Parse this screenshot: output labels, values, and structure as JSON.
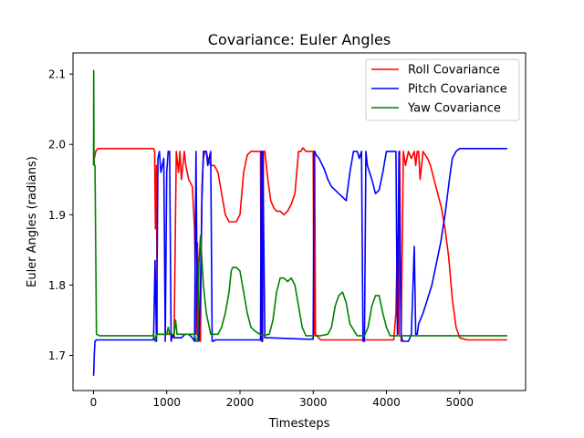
{
  "chart_data": {
    "type": "line",
    "title": "Covariance: Euler Angles",
    "xlabel": "Timesteps",
    "ylabel": "Euler Angles (radians)",
    "xlim": [
      -280,
      5900
    ],
    "ylim": [
      1.65,
      2.13
    ],
    "xticks": [
      0,
      1000,
      2000,
      3000,
      4000,
      5000
    ],
    "xtick_labels": [
      "0",
      "1000",
      "2000",
      "3000",
      "4000",
      "5000"
    ],
    "yticks": [
      1.7,
      1.8,
      1.9,
      2.0,
      2.1
    ],
    "ytick_labels": [
      "1.7",
      "1.8",
      "1.9",
      "2.0",
      "2.1"
    ],
    "grid": false,
    "legend_position": "top-right",
    "series": [
      {
        "name": "Roll Covariance",
        "color": "#ff0000",
        "x": [
          0,
          10,
          30,
          60,
          820,
          835,
          845,
          860,
          870,
          880,
          900,
          940,
          980,
          1000,
          1020,
          1060,
          1100,
          1130,
          1160,
          1180,
          1200,
          1220,
          1240,
          1260,
          1300,
          1350,
          1380,
          1400,
          1420,
          1440,
          1460,
          1480,
          1500,
          1520,
          1540,
          1560,
          1600,
          1650,
          1700,
          1750,
          1800,
          1850,
          1900,
          1950,
          2000,
          2050,
          2100,
          2150,
          2200,
          2250,
          2280,
          2290,
          2300,
          2310,
          2320,
          2340,
          2380,
          2420,
          2460,
          2500,
          2550,
          2600,
          2650,
          2700,
          2750,
          2800,
          2830,
          2860,
          2900,
          2950,
          3000,
          3010,
          3020,
          3030,
          3100,
          3500,
          3700,
          4100,
          4130,
          4150,
          4170,
          4180,
          4200,
          4230,
          4260,
          4300,
          4340,
          4380,
          4400,
          4420,
          4440,
          4460,
          4500,
          4560,
          4600,
          4650,
          4700,
          4750,
          4800,
          4850,
          4900,
          4950,
          5000,
          5100,
          5650
        ],
        "values": [
          1.975,
          1.98,
          1.99,
          1.994,
          1.994,
          1.99,
          1.88,
          1.97,
          1.73,
          1.73,
          1.73,
          1.73,
          1.73,
          1.73,
          1.73,
          1.73,
          1.725,
          1.99,
          1.96,
          1.99,
          1.95,
          1.97,
          1.99,
          1.97,
          1.95,
          1.94,
          1.88,
          1.73,
          1.86,
          1.73,
          1.72,
          1.94,
          1.98,
          1.99,
          1.99,
          1.98,
          1.97,
          1.97,
          1.96,
          1.93,
          1.9,
          1.89,
          1.89,
          1.89,
          1.9,
          1.96,
          1.985,
          1.99,
          1.99,
          1.99,
          1.99,
          1.72,
          1.99,
          1.72,
          1.99,
          1.99,
          1.95,
          1.92,
          1.91,
          1.905,
          1.905,
          1.9,
          1.905,
          1.915,
          1.93,
          1.99,
          1.99,
          1.995,
          1.99,
          1.99,
          1.99,
          1.73,
          1.99,
          1.73,
          1.722,
          1.722,
          1.722,
          1.722,
          1.76,
          1.87,
          1.73,
          1.99,
          1.72,
          1.99,
          1.97,
          1.99,
          1.98,
          1.99,
          1.97,
          1.99,
          1.99,
          1.95,
          1.99,
          1.98,
          1.97,
          1.95,
          1.93,
          1.91,
          1.88,
          1.84,
          1.78,
          1.74,
          1.725,
          1.722,
          1.722
        ]
      },
      {
        "name": "Pitch Covariance",
        "color": "#0000ff",
        "x": [
          0,
          5,
          10,
          20,
          40,
          80,
          820,
          840,
          860,
          880,
          900,
          920,
          940,
          960,
          980,
          1000,
          1020,
          1040,
          1060,
          1080,
          1100,
          1150,
          1200,
          1250,
          1300,
          1350,
          1380,
          1400,
          1420,
          1440,
          1460,
          1480,
          1500,
          1520,
          1540,
          1560,
          1580,
          1600,
          1620,
          1640,
          1660,
          1700,
          2250,
          2280,
          2290,
          2300,
          2310,
          2340,
          2400,
          2900,
          3000,
          3010,
          3020,
          3040,
          3080,
          3150,
          3200,
          3250,
          3300,
          3350,
          3400,
          3450,
          3500,
          3550,
          3600,
          3630,
          3660,
          3680,
          3700,
          3720,
          3740,
          3800,
          3850,
          3900,
          3950,
          4000,
          4050,
          4100,
          4130,
          4150,
          4170,
          4200,
          4220,
          4250,
          4300,
          4340,
          4380,
          4400,
          4420,
          4440,
          4460,
          4500,
          4560,
          4620,
          4680,
          4740,
          4800,
          4860,
          4900,
          4950,
          5000,
          5050,
          5100,
          5200,
          5650
        ],
        "values": [
          1.671,
          1.68,
          1.7,
          1.72,
          1.722,
          1.722,
          1.722,
          1.835,
          1.72,
          1.98,
          1.99,
          1.96,
          1.97,
          1.98,
          1.72,
          1.96,
          1.99,
          1.99,
          1.72,
          1.73,
          1.725,
          1.725,
          1.725,
          1.73,
          1.73,
          1.725,
          1.72,
          1.99,
          1.73,
          1.72,
          1.8,
          1.92,
          1.99,
          1.99,
          1.99,
          1.97,
          1.98,
          1.99,
          1.72,
          1.72,
          1.722,
          1.722,
          1.722,
          1.722,
          1.99,
          1.72,
          1.99,
          1.725,
          1.725,
          1.723,
          1.723,
          1.99,
          1.99,
          1.985,
          1.98,
          1.965,
          1.95,
          1.94,
          1.935,
          1.93,
          1.925,
          1.92,
          1.96,
          1.99,
          1.99,
          1.98,
          1.99,
          1.72,
          1.72,
          1.99,
          1.97,
          1.95,
          1.93,
          1.935,
          1.96,
          1.99,
          1.99,
          1.99,
          1.99,
          1.73,
          1.99,
          1.73,
          1.72,
          1.72,
          1.72,
          1.73,
          1.855,
          1.73,
          1.73,
          1.745,
          1.75,
          1.76,
          1.78,
          1.8,
          1.83,
          1.86,
          1.9,
          1.95,
          1.98,
          1.99,
          1.994,
          1.994,
          1.994,
          1.994,
          1.994
        ]
      },
      {
        "name": "Yaw Covariance",
        "color": "#008000",
        "x": [
          0,
          3,
          6,
          10,
          20,
          40,
          80,
          800,
          820,
          840,
          860,
          880,
          900,
          920,
          940,
          960,
          980,
          1000,
          1020,
          1040,
          1060,
          1080,
          1100,
          1120,
          1140,
          1200,
          1300,
          1380,
          1400,
          1420,
          1440,
          1460,
          1500,
          1520,
          1540,
          1560,
          1580,
          1600,
          1620,
          1660,
          1700,
          1750,
          1800,
          1850,
          1880,
          1900,
          1950,
          2000,
          2050,
          2100,
          2150,
          2200,
          2300,
          2400,
          2450,
          2500,
          2550,
          2600,
          2650,
          2700,
          2750,
          2800,
          2850,
          2900,
          3000,
          3100,
          3200,
          3250,
          3300,
          3350,
          3400,
          3450,
          3500,
          3600,
          3700,
          3750,
          3800,
          3850,
          3900,
          3950,
          4000,
          4050,
          4100,
          4200,
          4300,
          4400,
          4500,
          4600,
          4700,
          4800,
          4900,
          5000,
          5650
        ],
        "values": [
          1.97,
          2.105,
          1.98,
          1.97,
          1.97,
          1.73,
          1.728,
          1.728,
          1.73,
          1.72,
          1.73,
          1.73,
          1.73,
          1.73,
          1.73,
          1.73,
          1.73,
          1.73,
          1.74,
          1.73,
          1.73,
          1.73,
          1.73,
          1.75,
          1.73,
          1.73,
          1.73,
          1.73,
          1.72,
          1.72,
          1.83,
          1.87,
          1.8,
          1.78,
          1.76,
          1.75,
          1.74,
          1.73,
          1.73,
          1.73,
          1.73,
          1.74,
          1.76,
          1.79,
          1.82,
          1.825,
          1.825,
          1.82,
          1.79,
          1.76,
          1.74,
          1.735,
          1.728,
          1.73,
          1.75,
          1.79,
          1.81,
          1.81,
          1.805,
          1.81,
          1.8,
          1.77,
          1.74,
          1.728,
          1.728,
          1.728,
          1.73,
          1.74,
          1.77,
          1.785,
          1.79,
          1.775,
          1.745,
          1.728,
          1.728,
          1.74,
          1.77,
          1.785,
          1.785,
          1.76,
          1.74,
          1.728,
          1.728,
          1.728,
          1.728,
          1.728,
          1.728,
          1.728,
          1.728,
          1.728,
          1.728,
          1.728,
          1.728
        ]
      }
    ]
  }
}
